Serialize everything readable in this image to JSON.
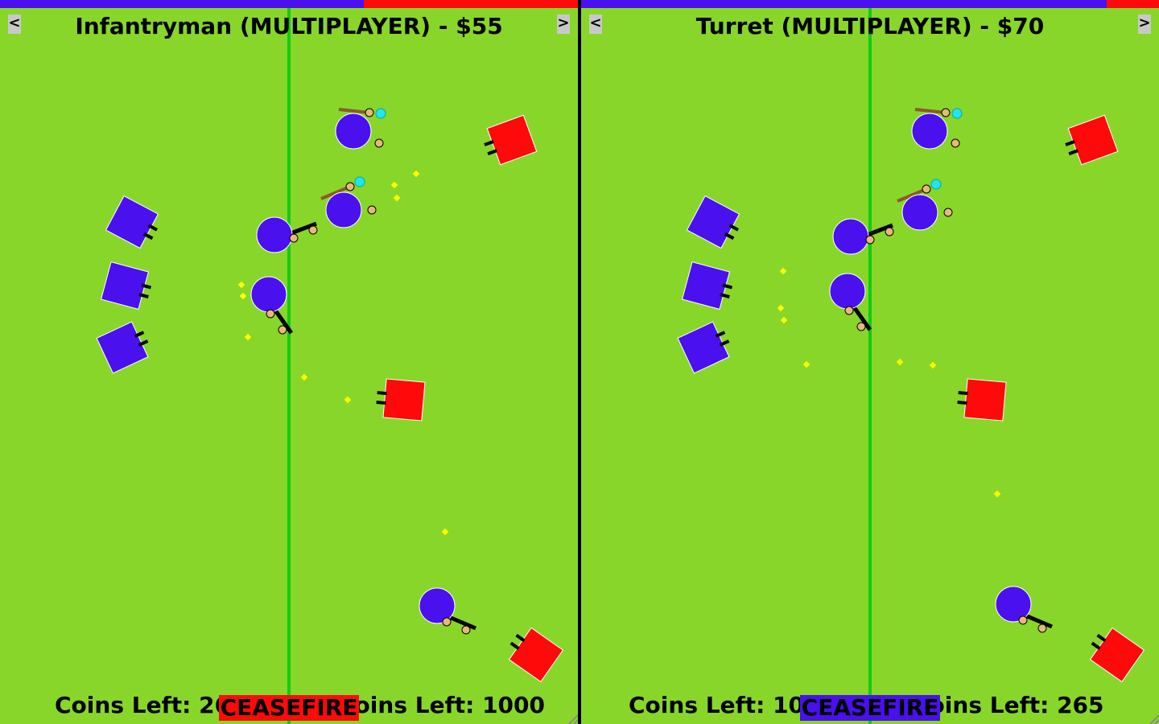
{
  "panels": [
    {
      "title": "Infantryman (MULTIPLAYER) - $55",
      "prev_label": "<",
      "next_label": ">",
      "coins_left_text": "Coins Left: 265",
      "coins_right_text": "Coins Left: 1000",
      "ceasefire_label": "CEASEFIRE",
      "ceasefire_color": "#ff0a0a",
      "blue_health_fraction": 0.63
    },
    {
      "title": "Turret (MULTIPLAYER) - $70",
      "prev_label": "<",
      "next_label": ">",
      "coins_left_text": "Coins Left: 1000",
      "coins_right_text": "Coins Left: 265",
      "ceasefire_label": "CEASEFIRE",
      "ceasefire_color": "#4a10ee",
      "blue_health_fraction": 0.91
    }
  ],
  "colors": {
    "field": "#88d62a",
    "midline": "#11cc11",
    "blue_team": "#4a10ee",
    "red_team": "#ff0a0a",
    "bullet": "#ffff00",
    "skin": "#e8b87a"
  }
}
